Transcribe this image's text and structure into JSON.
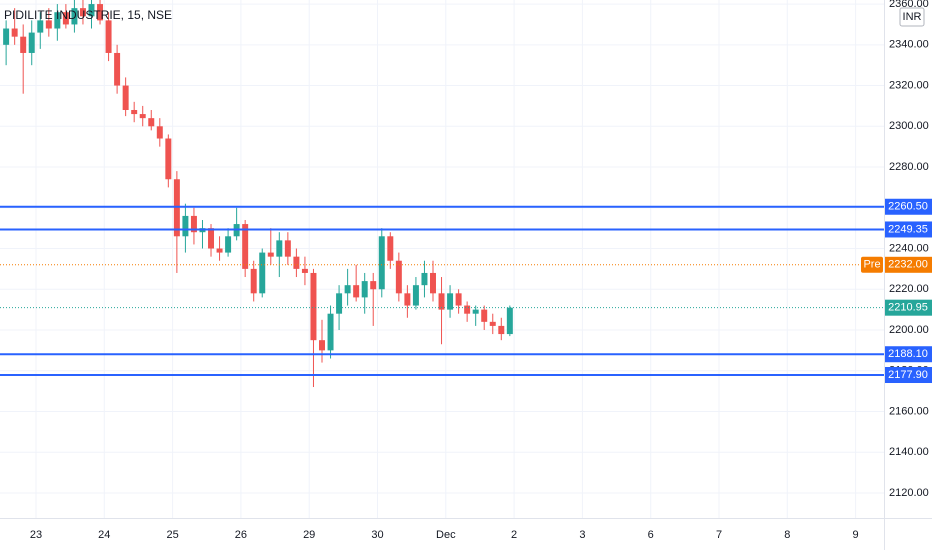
{
  "chart_data": {
    "type": "candlestick",
    "title": "PIDILITE INDUSTRIE, 15, NSE",
    "currency": "INR",
    "up_color": "#26a69a",
    "down_color": "#ef5350",
    "open": [
      2340,
      2348,
      2344,
      2336,
      2346,
      2352,
      2348,
      2356,
      2350,
      2358,
      2354,
      2360,
      2352,
      2336,
      2320,
      2308,
      2306,
      2304,
      2300,
      2294,
      2274,
      2246,
      2256,
      2248,
      2250,
      2240,
      2238,
      2246,
      2252,
      2230,
      2218,
      2238,
      2236,
      2244,
      2236,
      2230,
      2228,
      2195,
      2190,
      2208,
      2218,
      2222,
      2216,
      2224,
      2220,
      2246,
      2234,
      2218,
      2212,
      2222,
      2228,
      2218,
      2210,
      2218,
      2212,
      2208,
      2210,
      2204,
      2202,
      2198
    ],
    "high": [
      2352,
      2358,
      2350,
      2352,
      2356,
      2358,
      2360,
      2360,
      2362,
      2362,
      2362,
      2362,
      2356,
      2340,
      2324,
      2312,
      2310,
      2308,
      2304,
      2296,
      2278,
      2262,
      2260,
      2254,
      2252,
      2246,
      2250,
      2260,
      2254,
      2234,
      2240,
      2250,
      2248,
      2248,
      2240,
      2236,
      2230,
      2205,
      2212,
      2222,
      2230,
      2232,
      2228,
      2228,
      2250,
      2248,
      2238,
      2222,
      2226,
      2234,
      2234,
      2226,
      2222,
      2220,
      2214,
      2212,
      2212,
      2208,
      2206,
      2212
    ],
    "low": [
      2330,
      2340,
      2316,
      2330,
      2338,
      2344,
      2342,
      2348,
      2346,
      2350,
      2348,
      2350,
      2332,
      2316,
      2305,
      2302,
      2300,
      2298,
      2290,
      2270,
      2228,
      2238,
      2242,
      2240,
      2236,
      2234,
      2236,
      2244,
      2226,
      2214,
      2216,
      2232,
      2226,
      2232,
      2226,
      2222,
      2172,
      2184,
      2186,
      2200,
      2212,
      2214,
      2208,
      2202,
      2216,
      2230,
      2214,
      2206,
      2210,
      2216,
      2214,
      2193,
      2206,
      2208,
      2204,
      2202,
      2200,
      2198,
      2195,
      2197
    ],
    "close": [
      2348,
      2344,
      2336,
      2346,
      2352,
      2348,
      2356,
      2350,
      2358,
      2354,
      2360,
      2352,
      2336,
      2320,
      2308,
      2306,
      2304,
      2300,
      2294,
      2274,
      2246,
      2256,
      2248,
      2250,
      2240,
      2238,
      2246,
      2252,
      2230,
      2218,
      2238,
      2236,
      2244,
      2236,
      2230,
      2228,
      2195,
      2190,
      2208,
      2218,
      2222,
      2216,
      2224,
      2220,
      2246,
      2234,
      2218,
      2212,
      2222,
      2228,
      2218,
      2210,
      2218,
      2212,
      2208,
      2210,
      2204,
      2202,
      2198,
      2210.95
    ],
    "x_labels": [
      "23",
      "24",
      "25",
      "26",
      "29",
      "30",
      "Dec",
      "2",
      "3",
      "6",
      "7",
      "8",
      "9"
    ],
    "ylim": [
      2107.7,
      2362
    ],
    "yticks": [
      {
        "value": 2120,
        "label": "2120.00"
      },
      {
        "value": 2140,
        "label": "2140.00"
      },
      {
        "value": 2160,
        "label": "2160.00"
      },
      {
        "value": 2180,
        "label": "2180.00"
      },
      {
        "value": 2200,
        "label": "2200.00"
      },
      {
        "value": 2220,
        "label": "2220.00"
      },
      {
        "value": 2240,
        "label": "2240.00"
      },
      {
        "value": 2260,
        "label": "2260.00"
      },
      {
        "value": 2280,
        "label": "2280.00"
      },
      {
        "value": 2300,
        "label": "2300.00"
      },
      {
        "value": 2320,
        "label": "2320.00"
      },
      {
        "value": 2340,
        "label": "2340.00"
      },
      {
        "value": 2360,
        "label": "2360.00"
      }
    ],
    "grid": true,
    "hlines": {
      "color": "#2962ff",
      "values": [
        2260.5,
        2249.35,
        2188.1,
        2177.9
      ],
      "value_labels": [
        "2260.50",
        "2249.35",
        "2188.10",
        "2177.90"
      ]
    },
    "pre_market": {
      "name": "Pre",
      "value": 2232,
      "value_label": "2232.00",
      "color": "#f57c00"
    },
    "last_price": {
      "value": 2210.95,
      "color": "#26a69a"
    }
  }
}
